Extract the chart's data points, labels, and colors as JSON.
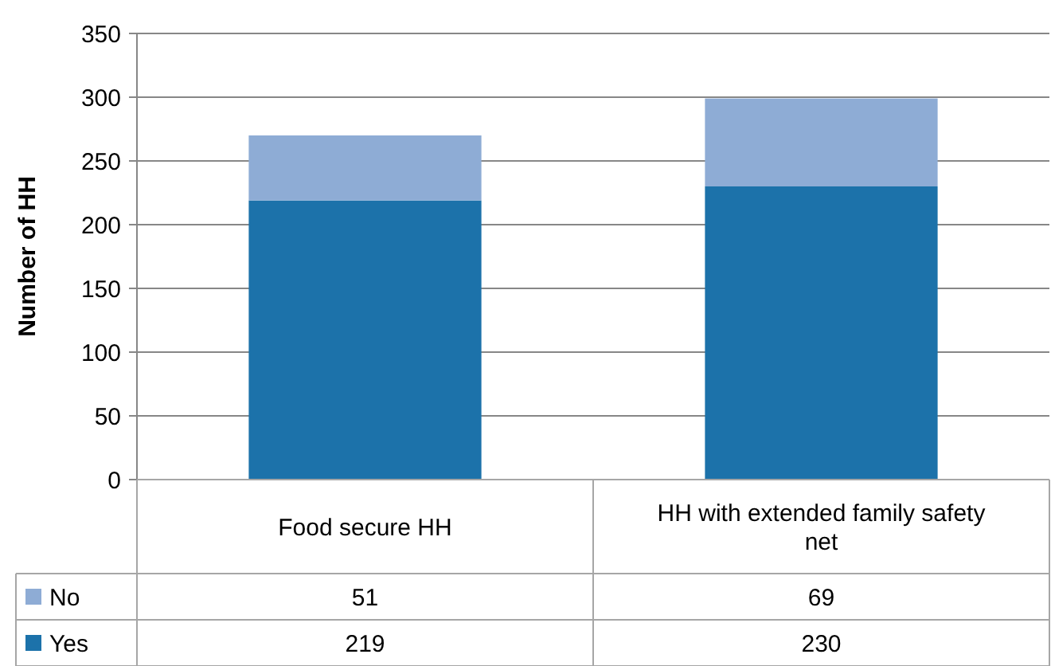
{
  "chart_data": {
    "type": "bar",
    "ylabel": "Number of HH",
    "categories": [
      "Food secure HH",
      "HH with extended family safety net"
    ],
    "stacked": true,
    "series": [
      {
        "name": "Yes",
        "color": "#1c72aa",
        "values": [
          219,
          230
        ]
      },
      {
        "name": "No",
        "color": "#8eacd5",
        "values": [
          51,
          69
        ]
      }
    ],
    "ylim": [
      0,
      350
    ],
    "yticks": [
      0,
      50,
      100,
      150,
      200,
      250,
      300,
      350
    ],
    "grid": "y",
    "data_labels": true,
    "legend": "bottom"
  }
}
